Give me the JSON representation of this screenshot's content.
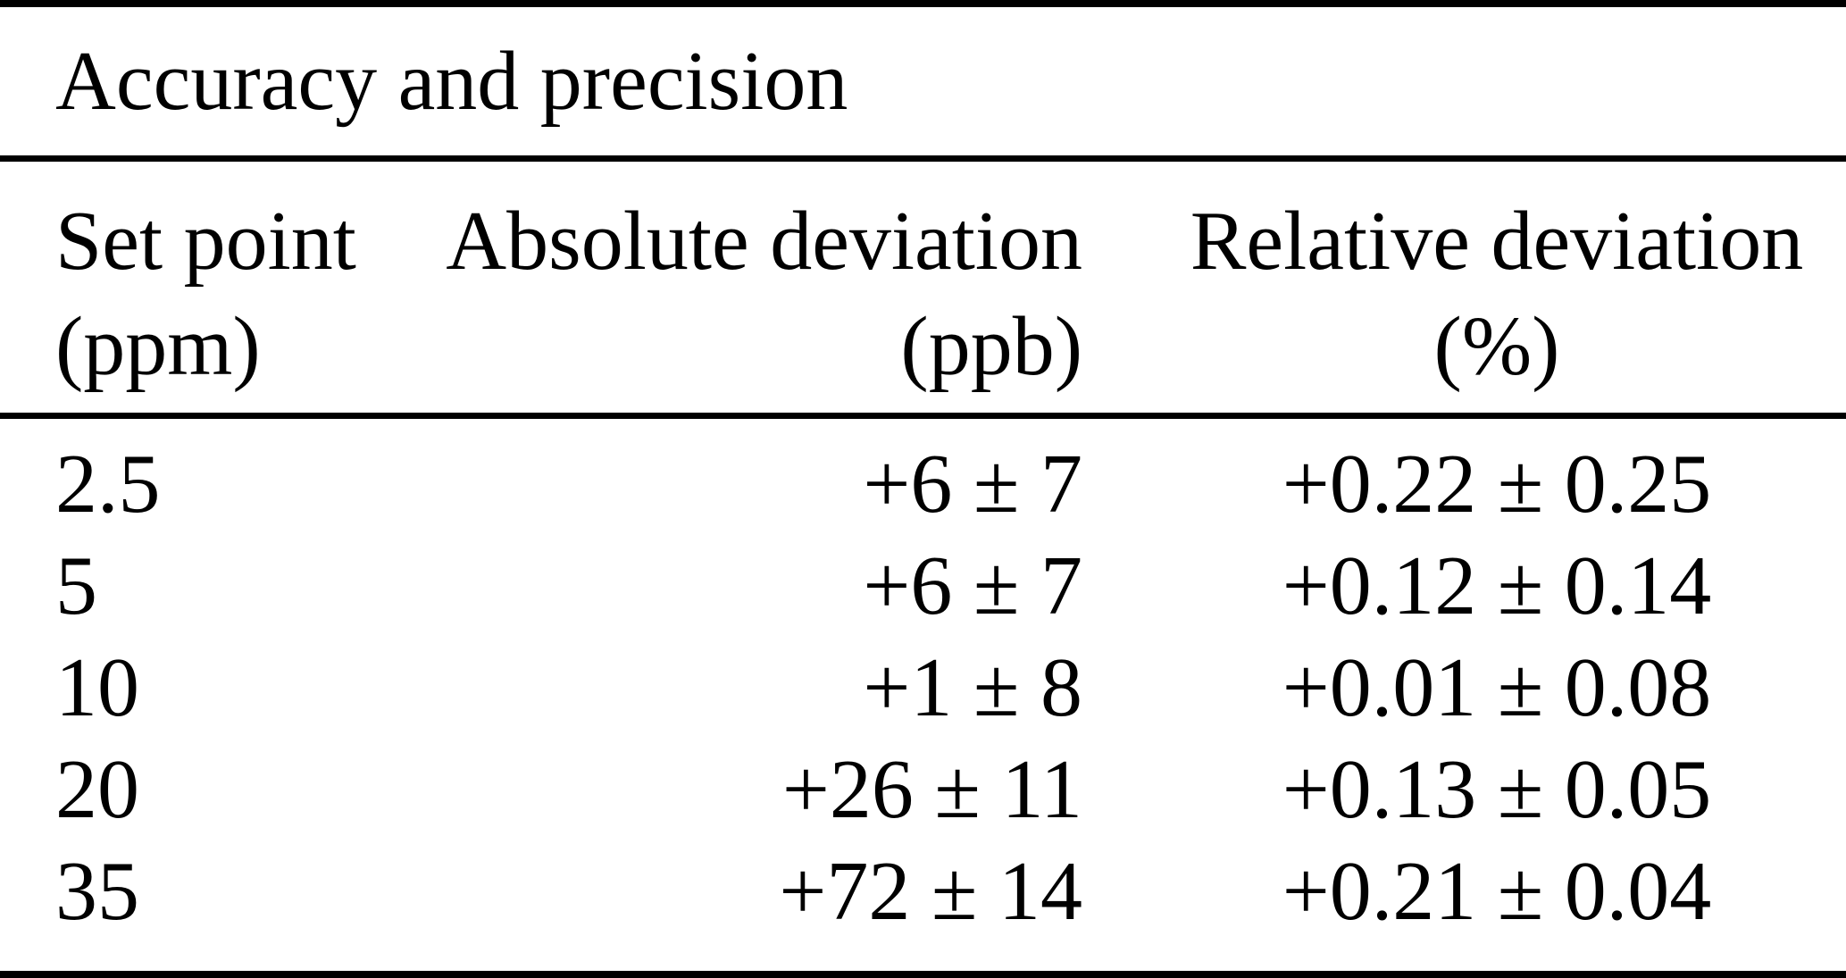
{
  "table": {
    "title": "Accuracy and precision",
    "columns": [
      {
        "label": "Set point",
        "unit": "(ppm)"
      },
      {
        "label": "Absolute deviation",
        "unit": "(ppb)"
      },
      {
        "label": "Relative deviation",
        "unit": "(%)"
      }
    ],
    "rows": [
      {
        "set_point": "2.5",
        "absolute_deviation": "+6 ± 7",
        "relative_deviation": "+0.22 ± 0.25"
      },
      {
        "set_point": "5",
        "absolute_deviation": "+6 ± 7",
        "relative_deviation": "+0.12 ± 0.14"
      },
      {
        "set_point": "10",
        "absolute_deviation": "+1 ± 8",
        "relative_deviation": "+0.01 ± 0.08"
      },
      {
        "set_point": "20",
        "absolute_deviation": "+26 ± 11",
        "relative_deviation": "+0.13 ± 0.05"
      },
      {
        "set_point": "35",
        "absolute_deviation": "+72 ± 14",
        "relative_deviation": "+0.21 ± 0.04"
      }
    ],
    "colors": {
      "text": "#000000",
      "background": "#ffffff",
      "rule": "#000000"
    }
  }
}
